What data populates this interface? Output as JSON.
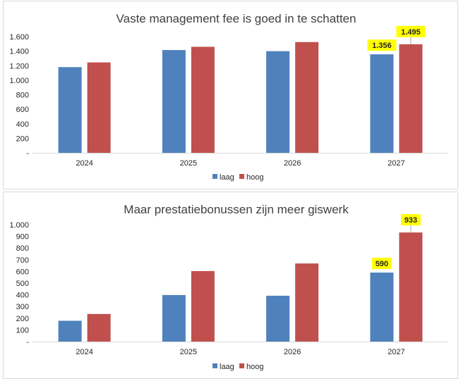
{
  "colors": {
    "laag": "#4f81bd",
    "hoog": "#c0504d",
    "label_bg": "#ffff00",
    "axis": "#d9d9d9"
  },
  "chart_data": [
    {
      "type": "bar",
      "title": "Vaste management fee is goed in te schatten",
      "categories": [
        "2024",
        "2025",
        "2026",
        "2027"
      ],
      "series": [
        {
          "name": "laag",
          "values": [
            1180,
            1415,
            1400,
            1356
          ]
        },
        {
          "name": "hoog",
          "values": [
            1245,
            1460,
            1525,
            1495
          ]
        }
      ],
      "ylim": [
        0,
        1600
      ],
      "yticks": [
        0,
        200,
        400,
        600,
        800,
        1000,
        1200,
        1400,
        1600
      ],
      "ytick_labels": [
        "-",
        "200",
        "400",
        "600",
        "800",
        "1.000",
        "1.200",
        "1.400",
        "1.600"
      ],
      "data_labels": [
        {
          "series": 0,
          "index": 3,
          "text": "1.356"
        },
        {
          "series": 1,
          "index": 3,
          "text": "1.495"
        }
      ],
      "legend": "bottom",
      "grid": false
    },
    {
      "type": "bar",
      "title": "Maar prestatiebonussen zijn meer giswerk",
      "categories": [
        "2024",
        "2025",
        "2026",
        "2027"
      ],
      "series": [
        {
          "name": "laag",
          "values": [
            178,
            398,
            392,
            590
          ]
        },
        {
          "name": "hoog",
          "values": [
            236,
            603,
            668,
            933
          ]
        }
      ],
      "ylim": [
        0,
        1000
      ],
      "yticks": [
        0,
        100,
        200,
        300,
        400,
        500,
        600,
        700,
        800,
        900,
        1000
      ],
      "ytick_labels": [
        "-",
        "100",
        "200",
        "300",
        "400",
        "500",
        "600",
        "700",
        "800",
        "900",
        "1.000"
      ],
      "data_labels": [
        {
          "series": 0,
          "index": 3,
          "text": "590"
        },
        {
          "series": 1,
          "index": 3,
          "text": "933"
        }
      ],
      "legend": "bottom",
      "grid": false
    }
  ]
}
